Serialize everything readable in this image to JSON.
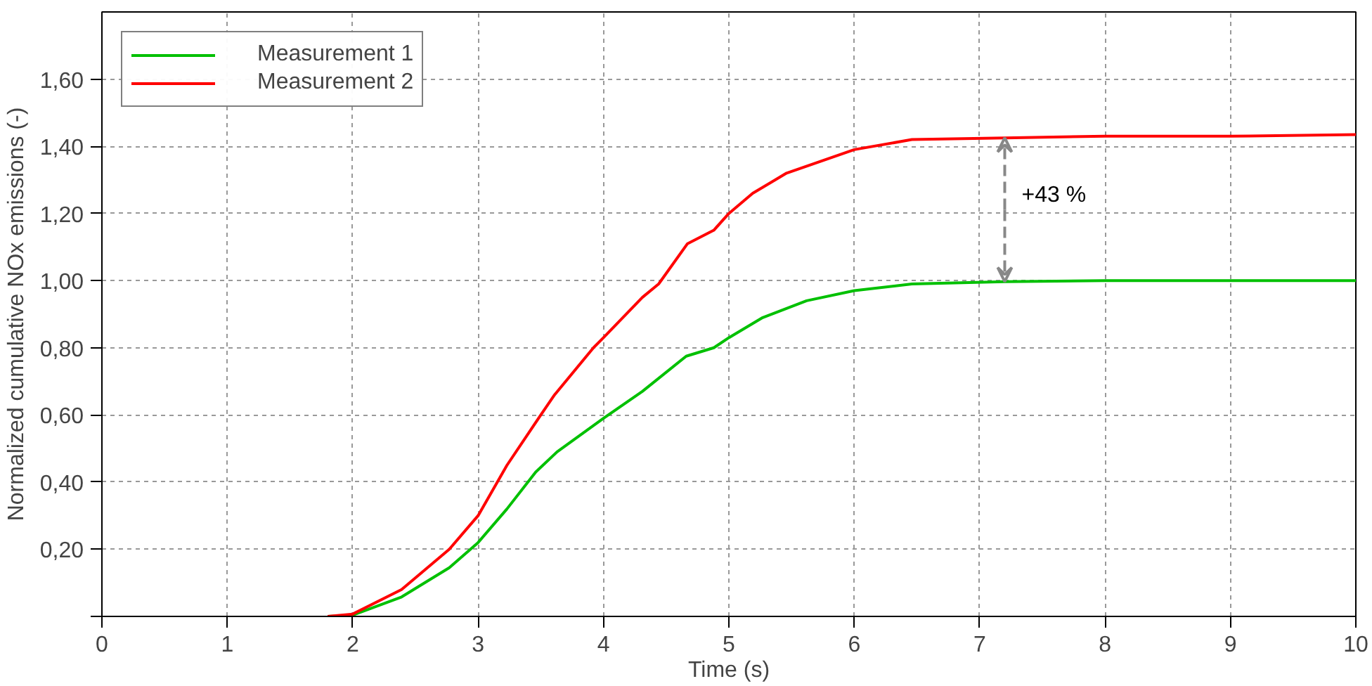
{
  "chart_data": {
    "type": "line",
    "xlabel": "Time (s)",
    "ylabel": "Normalized cumulative NOx emissions (-)",
    "xlim": [
      0,
      10
    ],
    "xticks": [
      0,
      1,
      2,
      3,
      4,
      5,
      6,
      7,
      8,
      9,
      10
    ],
    "ylim": [
      0,
      1.8
    ],
    "yticks": [
      {
        "value": 0,
        "label": null
      },
      {
        "value": 0.2,
        "label": "0,20"
      },
      {
        "value": 0.4,
        "label": "0,40"
      },
      {
        "value": 0.6,
        "label": "0,60"
      },
      {
        "value": 0.8,
        "label": "0,80"
      },
      {
        "value": 1.0,
        "label": "1,00"
      },
      {
        "value": 1.2,
        "label": "1,20"
      },
      {
        "value": 1.4,
        "label": "1,40"
      },
      {
        "value": 1.6,
        "label": "1,60"
      }
    ],
    "grid": true,
    "legend": "top left",
    "line_style": "solid",
    "marker": "none",
    "series": [
      {
        "name": "Measurement 1",
        "color": "#00c000",
        "x": [
          1.8,
          2,
          2.39,
          2.77,
          3,
          3.23,
          3.46,
          3.63,
          4,
          4.31,
          4.66,
          4.88,
          5,
          5.27,
          5.62,
          6,
          6.46,
          7.2,
          8,
          9,
          10
        ],
        "values": [
          0,
          0.004,
          0.058,
          0.145,
          0.22,
          0.32,
          0.43,
          0.49,
          0.59,
          0.67,
          0.775,
          0.8,
          0.83,
          0.89,
          0.94,
          0.97,
          0.99,
          0.997,
          1.0,
          1.0,
          1.0
        ]
      },
      {
        "name": "Measurement 2",
        "color": "#ff0000",
        "x": [
          1.8,
          2,
          2.39,
          2.77,
          3,
          3.23,
          3.5,
          3.61,
          3.92,
          4,
          4.31,
          4.44,
          4.67,
          4.88,
          5,
          5.19,
          5.46,
          6,
          6.46,
          7.2,
          8,
          9,
          10
        ],
        "values": [
          0,
          0.007,
          0.08,
          0.2,
          0.3,
          0.45,
          0.6,
          0.66,
          0.8,
          0.83,
          0.95,
          0.99,
          1.11,
          1.15,
          1.2,
          1.26,
          1.32,
          1.39,
          1.42,
          1.425,
          1.43,
          1.43,
          1.435
        ]
      }
    ],
    "annotations": [
      {
        "text": "+43 %",
        "x": 7.2,
        "y": 1.425
      }
    ]
  }
}
